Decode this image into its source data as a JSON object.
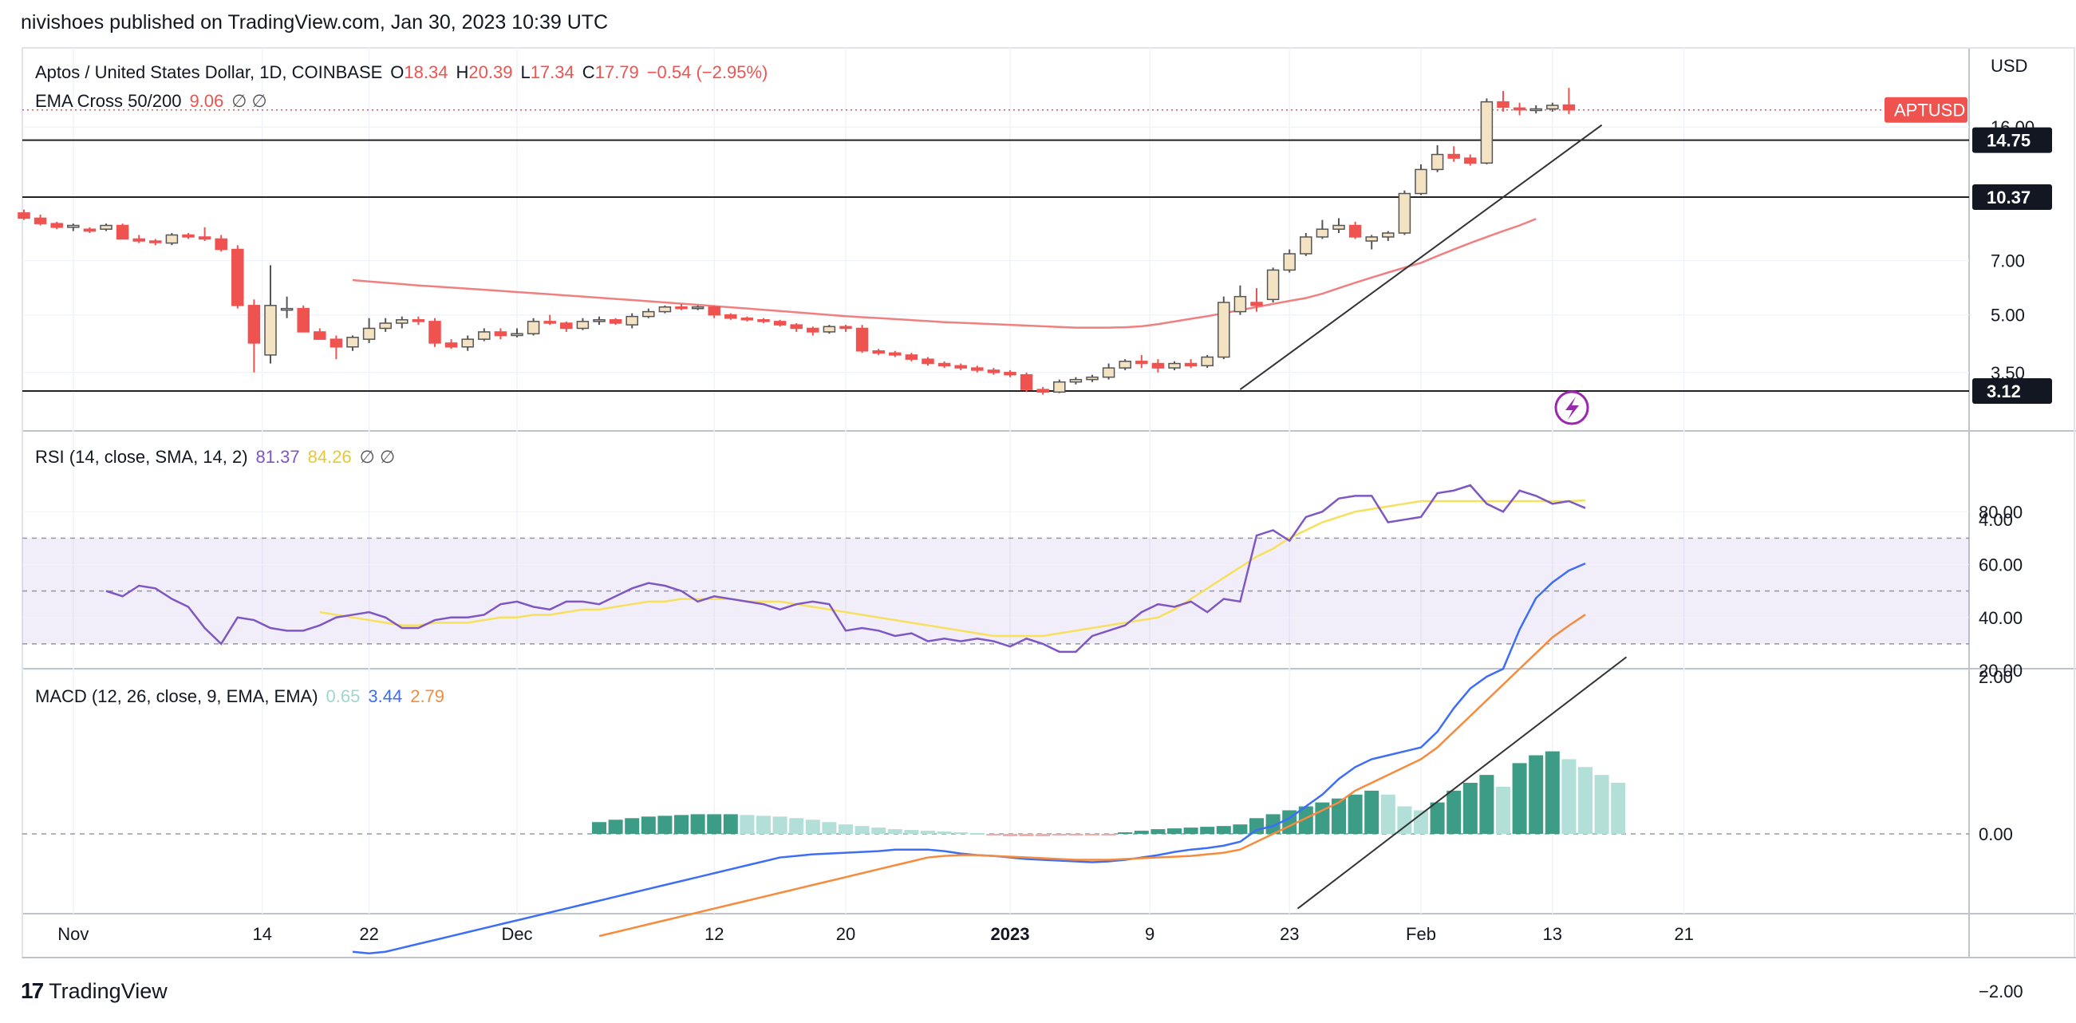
{
  "publisher": "nivishoes published on TradingView.com, Jan 30, 2023 10:39 UTC",
  "footer": {
    "brand": "TradingView",
    "logo": "17"
  },
  "colors": {
    "up": "#f3e3c3",
    "down": "#ef5350",
    "ema": "#f08080",
    "rsi": "#7e57c2",
    "rsi_ma": "#f6e05e",
    "macd": "#3d6ef5",
    "signal": "#f58b3d",
    "hist_strong": "#3c9c86",
    "hist_weak": "#b2dfd8"
  },
  "price_pane": {
    "title": "Aptos / United States Dollar, 1D, COINBASE",
    "o_label": "O",
    "o": "18.34",
    "h_label": "H",
    "h": "20.39",
    "l_label": "L",
    "l": "17.34",
    "c_label": "C",
    "c": "17.79",
    "change": "−0.54 (−2.95%)",
    "ema_label": "EMA Cross 50/200",
    "ema_value": "9.06",
    "ema_extra": "∅ ∅",
    "currency": "USD",
    "symbol_tag": "APTUSD",
    "levels": [
      "14.75",
      "10.37",
      "3.12"
    ],
    "ticks": [
      "16.00",
      "7.00",
      "5.00",
      "3.50"
    ],
    "icon": "lightning-icon"
  },
  "rsi_pane": {
    "title": "RSI (14, close, SMA, 14, 2)",
    "value": "81.37",
    "ma_value": "84.26",
    "extra": "∅ ∅",
    "ticks": [
      "80.00",
      "60.00",
      "40.00",
      "20.00"
    ]
  },
  "macd_pane": {
    "title": "MACD (12, 26, close, 9, EMA, EMA)",
    "hist": "0.65",
    "macd": "3.44",
    "signal": "2.79",
    "ticks": [
      "4.00",
      "2.00",
      "0.00",
      "−2.00"
    ]
  },
  "time_axis": [
    "Nov",
    "14",
    "22",
    "Dec",
    "12",
    "20",
    "2023",
    "9",
    "23",
    "Feb",
    "13",
    "21"
  ],
  "chart_data": {
    "type": "candlestick",
    "title": "Aptos / United States Dollar, 1D, COINBASE",
    "price_ticks": [
      16.0,
      7.0,
      5.0,
      3.5
    ],
    "horizontal_levels": [
      14.75,
      10.37,
      3.12
    ],
    "candles": [
      {
        "o": 9.4,
        "h": 9.6,
        "l": 9.0,
        "c": 9.1
      },
      {
        "o": 9.1,
        "h": 9.3,
        "l": 8.7,
        "c": 8.8
      },
      {
        "o": 8.8,
        "h": 8.9,
        "l": 8.5,
        "c": 8.6
      },
      {
        "o": 8.6,
        "h": 8.8,
        "l": 8.4,
        "c": 8.7
      },
      {
        "o": 8.5,
        "h": 8.6,
        "l": 8.3,
        "c": 8.4
      },
      {
        "o": 8.5,
        "h": 8.8,
        "l": 8.4,
        "c": 8.7
      },
      {
        "o": 8.7,
        "h": 8.8,
        "l": 8.0,
        "c": 8.0
      },
      {
        "o": 8.0,
        "h": 8.2,
        "l": 7.8,
        "c": 7.9
      },
      {
        "o": 7.9,
        "h": 8.0,
        "l": 7.7,
        "c": 7.85
      },
      {
        "o": 7.8,
        "h": 8.3,
        "l": 7.7,
        "c": 8.2
      },
      {
        "o": 8.2,
        "h": 8.3,
        "l": 8.0,
        "c": 8.1
      },
      {
        "o": 8.1,
        "h": 8.6,
        "l": 7.9,
        "c": 8.0
      },
      {
        "o": 8.0,
        "h": 8.2,
        "l": 7.4,
        "c": 7.5
      },
      {
        "o": 7.5,
        "h": 7.7,
        "l": 5.2,
        "c": 5.3
      },
      {
        "o": 5.3,
        "h": 5.5,
        "l": 3.5,
        "c": 4.2
      },
      {
        "o": 3.9,
        "h": 6.8,
        "l": 3.7,
        "c": 5.3
      },
      {
        "o": 5.2,
        "h": 5.6,
        "l": 4.9,
        "c": 5.2
      },
      {
        "o": 5.2,
        "h": 5.3,
        "l": 4.5,
        "c": 4.5
      },
      {
        "o": 4.5,
        "h": 4.6,
        "l": 4.3,
        "c": 4.3
      },
      {
        "o": 4.3,
        "h": 4.4,
        "l": 3.8,
        "c": 4.1
      },
      {
        "o": 4.1,
        "h": 4.4,
        "l": 4.0,
        "c": 4.35
      },
      {
        "o": 4.3,
        "h": 4.9,
        "l": 4.2,
        "c": 4.6
      },
      {
        "o": 4.6,
        "h": 4.9,
        "l": 4.5,
        "c": 4.75
      },
      {
        "o": 4.75,
        "h": 4.95,
        "l": 4.6,
        "c": 4.85
      },
      {
        "o": 4.85,
        "h": 4.95,
        "l": 4.7,
        "c": 4.8
      },
      {
        "o": 4.8,
        "h": 4.9,
        "l": 4.1,
        "c": 4.2
      },
      {
        "o": 4.2,
        "h": 4.3,
        "l": 4.05,
        "c": 4.1
      },
      {
        "o": 4.1,
        "h": 4.4,
        "l": 4.0,
        "c": 4.3
      },
      {
        "o": 4.3,
        "h": 4.6,
        "l": 4.25,
        "c": 4.5
      },
      {
        "o": 4.5,
        "h": 4.6,
        "l": 4.3,
        "c": 4.4
      },
      {
        "o": 4.4,
        "h": 4.6,
        "l": 4.35,
        "c": 4.45
      },
      {
        "o": 4.45,
        "h": 4.9,
        "l": 4.4,
        "c": 4.8
      },
      {
        "o": 4.8,
        "h": 5.0,
        "l": 4.7,
        "c": 4.75
      },
      {
        "o": 4.75,
        "h": 4.8,
        "l": 4.5,
        "c": 4.6
      },
      {
        "o": 4.6,
        "h": 4.9,
        "l": 4.55,
        "c": 4.8
      },
      {
        "o": 4.8,
        "h": 4.95,
        "l": 4.7,
        "c": 4.85
      },
      {
        "o": 4.85,
        "h": 4.9,
        "l": 4.7,
        "c": 4.75
      },
      {
        "o": 4.7,
        "h": 5.05,
        "l": 4.6,
        "c": 4.95
      },
      {
        "o": 4.95,
        "h": 5.2,
        "l": 4.9,
        "c": 5.1
      },
      {
        "o": 5.1,
        "h": 5.3,
        "l": 5.05,
        "c": 5.25
      },
      {
        "o": 5.25,
        "h": 5.35,
        "l": 5.15,
        "c": 5.2
      },
      {
        "o": 5.2,
        "h": 5.3,
        "l": 5.15,
        "c": 5.25
      },
      {
        "o": 5.25,
        "h": 5.3,
        "l": 4.9,
        "c": 5.0
      },
      {
        "o": 5.0,
        "h": 5.05,
        "l": 4.85,
        "c": 4.9
      },
      {
        "o": 4.9,
        "h": 4.95,
        "l": 4.8,
        "c": 4.85
      },
      {
        "o": 4.85,
        "h": 4.9,
        "l": 4.75,
        "c": 4.8
      },
      {
        "o": 4.8,
        "h": 4.85,
        "l": 4.65,
        "c": 4.7
      },
      {
        "o": 4.7,
        "h": 4.75,
        "l": 4.5,
        "c": 4.6
      },
      {
        "o": 4.6,
        "h": 4.65,
        "l": 4.4,
        "c": 4.5
      },
      {
        "o": 4.5,
        "h": 4.7,
        "l": 4.45,
        "c": 4.65
      },
      {
        "o": 4.65,
        "h": 4.7,
        "l": 4.5,
        "c": 4.6
      },
      {
        "o": 4.6,
        "h": 4.7,
        "l": 3.95,
        "c": 4.0
      },
      {
        "o": 4.0,
        "h": 4.05,
        "l": 3.9,
        "c": 3.95
      },
      {
        "o": 3.95,
        "h": 4.0,
        "l": 3.85,
        "c": 3.9
      },
      {
        "o": 3.9,
        "h": 3.95,
        "l": 3.75,
        "c": 3.8
      },
      {
        "o": 3.8,
        "h": 3.85,
        "l": 3.65,
        "c": 3.7
      },
      {
        "o": 3.7,
        "h": 3.75,
        "l": 3.6,
        "c": 3.65
      },
      {
        "o": 3.65,
        "h": 3.7,
        "l": 3.55,
        "c": 3.6
      },
      {
        "o": 3.6,
        "h": 3.65,
        "l": 3.5,
        "c": 3.55
      },
      {
        "o": 3.55,
        "h": 3.6,
        "l": 3.45,
        "c": 3.5
      },
      {
        "o": 3.5,
        "h": 3.55,
        "l": 3.4,
        "c": 3.45
      },
      {
        "o": 3.45,
        "h": 3.5,
        "l": 3.1,
        "c": 3.15
      },
      {
        "o": 3.15,
        "h": 3.2,
        "l": 3.05,
        "c": 3.1
      },
      {
        "o": 3.1,
        "h": 3.35,
        "l": 3.08,
        "c": 3.3
      },
      {
        "o": 3.3,
        "h": 3.4,
        "l": 3.25,
        "c": 3.35
      },
      {
        "o": 3.35,
        "h": 3.45,
        "l": 3.3,
        "c": 3.4
      },
      {
        "o": 3.4,
        "h": 3.7,
        "l": 3.35,
        "c": 3.6
      },
      {
        "o": 3.6,
        "h": 3.8,
        "l": 3.55,
        "c": 3.75
      },
      {
        "o": 3.75,
        "h": 3.9,
        "l": 3.6,
        "c": 3.7
      },
      {
        "o": 3.7,
        "h": 3.8,
        "l": 3.5,
        "c": 3.6
      },
      {
        "o": 3.6,
        "h": 3.75,
        "l": 3.55,
        "c": 3.7
      },
      {
        "o": 3.7,
        "h": 3.8,
        "l": 3.6,
        "c": 3.65
      },
      {
        "o": 3.65,
        "h": 3.9,
        "l": 3.6,
        "c": 3.85
      },
      {
        "o": 3.85,
        "h": 5.6,
        "l": 3.8,
        "c": 5.4
      },
      {
        "o": 5.1,
        "h": 6.0,
        "l": 5.0,
        "c": 5.6
      },
      {
        "o": 5.4,
        "h": 5.9,
        "l": 5.1,
        "c": 5.3
      },
      {
        "o": 5.5,
        "h": 6.7,
        "l": 5.4,
        "c": 6.6
      },
      {
        "o": 6.6,
        "h": 7.5,
        "l": 6.5,
        "c": 7.3
      },
      {
        "o": 7.3,
        "h": 8.3,
        "l": 7.2,
        "c": 8.1
      },
      {
        "o": 8.1,
        "h": 9.0,
        "l": 8.0,
        "c": 8.5
      },
      {
        "o": 8.5,
        "h": 9.1,
        "l": 8.3,
        "c": 8.7
      },
      {
        "o": 8.7,
        "h": 8.9,
        "l": 8.0,
        "c": 8.1
      },
      {
        "o": 7.9,
        "h": 8.2,
        "l": 7.5,
        "c": 8.1
      },
      {
        "o": 8.1,
        "h": 8.4,
        "l": 7.9,
        "c": 8.3
      },
      {
        "o": 8.3,
        "h": 10.8,
        "l": 8.2,
        "c": 10.6
      },
      {
        "o": 10.6,
        "h": 12.7,
        "l": 10.5,
        "c": 12.3
      },
      {
        "o": 12.3,
        "h": 14.3,
        "l": 12.1,
        "c": 13.5
      },
      {
        "o": 13.5,
        "h": 14.2,
        "l": 12.9,
        "c": 13.2
      },
      {
        "o": 13.2,
        "h": 13.5,
        "l": 12.6,
        "c": 12.8
      },
      {
        "o": 12.8,
        "h": 19.1,
        "l": 12.7,
        "c": 18.7
      },
      {
        "o": 18.7,
        "h": 20.0,
        "l": 17.6,
        "c": 18.1
      },
      {
        "o": 18.0,
        "h": 18.6,
        "l": 17.2,
        "c": 17.8
      },
      {
        "o": 17.8,
        "h": 18.3,
        "l": 17.4,
        "c": 17.9
      },
      {
        "o": 17.9,
        "h": 18.6,
        "l": 17.6,
        "c": 18.3
      },
      {
        "o": 18.34,
        "h": 20.39,
        "l": 17.34,
        "c": 17.79
      }
    ],
    "ema_start_index": 20,
    "ema": [
      6.2,
      6.15,
      6.1,
      6.05,
      6.0,
      5.96,
      5.92,
      5.88,
      5.84,
      5.8,
      5.76,
      5.72,
      5.68,
      5.64,
      5.6,
      5.56,
      5.52,
      5.48,
      5.44,
      5.4,
      5.36,
      5.32,
      5.28,
      5.24,
      5.2,
      5.16,
      5.12,
      5.08,
      5.04,
      5.0,
      4.96,
      4.93,
      4.9,
      4.87,
      4.84,
      4.81,
      4.78,
      4.76,
      4.74,
      4.72,
      4.7,
      4.68,
      4.66,
      4.64,
      4.62,
      4.62,
      4.62,
      4.63,
      4.66,
      4.72,
      4.8,
      4.88,
      4.96,
      5.05,
      5.15,
      5.25,
      5.35,
      5.45,
      5.55,
      5.7,
      5.9,
      6.1,
      6.3,
      6.5,
      6.7,
      6.9,
      7.2,
      7.5,
      7.8,
      8.1,
      8.4,
      8.7,
      9.06
    ],
    "rsi_ticks": [
      80,
      60,
      40,
      20
    ],
    "rsi_band": [
      30,
      70
    ],
    "rsi": [
      null,
      null,
      null,
      null,
      null,
      50,
      48,
      52,
      51,
      47,
      44,
      36,
      30,
      40,
      39,
      36,
      35,
      35,
      37,
      40,
      41,
      42,
      40,
      36,
      36,
      39,
      40,
      40,
      41,
      45,
      46,
      44,
      43,
      46,
      46,
      45,
      48,
      51,
      53,
      52,
      50,
      46,
      48,
      47,
      46,
      45,
      43,
      45,
      46,
      45,
      35,
      36,
      35,
      33,
      34,
      31,
      32,
      31,
      32,
      31,
      29,
      32,
      30,
      27,
      27,
      33,
      35,
      37,
      42,
      45,
      44,
      46,
      42,
      47,
      46,
      71,
      73,
      69,
      78,
      80,
      85,
      86,
      86,
      76,
      77,
      78,
      87,
      88,
      90,
      83,
      80,
      88,
      86,
      83,
      84,
      81.37
    ],
    "rsi_ma": [
      null,
      null,
      null,
      null,
      null,
      null,
      null,
      null,
      null,
      null,
      null,
      null,
      null,
      null,
      null,
      null,
      null,
      null,
      42,
      41,
      40,
      39,
      38,
      37,
      37,
      38,
      38,
      38,
      39,
      40,
      40,
      41,
      41,
      42,
      43,
      43,
      44,
      45,
      46,
      46,
      47,
      47,
      47,
      47,
      46,
      46,
      46,
      45,
      44,
      43,
      42,
      41,
      40,
      39,
      38,
      37,
      36,
      35,
      34,
      33,
      33,
      33,
      33,
      34,
      35,
      36,
      37,
      38,
      39,
      40,
      43,
      47,
      51,
      55,
      59,
      63,
      66,
      70,
      73,
      76,
      78,
      80,
      81,
      82,
      83,
      84,
      84,
      84,
      84,
      84,
      84,
      84,
      84,
      84,
      84,
      84.26
    ],
    "macd_ticks": [
      4.0,
      2.0,
      0.0,
      -2.0
    ],
    "macd": [
      null,
      null,
      null,
      null,
      null,
      null,
      null,
      null,
      null,
      null,
      null,
      null,
      null,
      null,
      null,
      null,
      null,
      null,
      null,
      null,
      -1.5,
      -1.52,
      -1.5,
      -1.45,
      -1.4,
      -1.35,
      -1.3,
      -1.25,
      -1.2,
      -1.15,
      -1.1,
      -1.05,
      -1.0,
      -0.95,
      -0.9,
      -0.85,
      -0.8,
      -0.75,
      -0.7,
      -0.65,
      -0.6,
      -0.55,
      -0.5,
      -0.45,
      -0.4,
      -0.35,
      -0.3,
      -0.28,
      -0.26,
      -0.25,
      -0.24,
      -0.23,
      -0.22,
      -0.2,
      -0.2,
      -0.2,
      -0.22,
      -0.25,
      -0.27,
      -0.28,
      -0.3,
      -0.32,
      -0.33,
      -0.34,
      -0.35,
      -0.36,
      -0.35,
      -0.33,
      -0.3,
      -0.27,
      -0.23,
      -0.2,
      -0.18,
      -0.15,
      -0.1,
      0.05,
      0.1,
      0.2,
      0.35,
      0.5,
      0.7,
      0.85,
      0.95,
      1.0,
      1.05,
      1.1,
      1.3,
      1.6,
      1.85,
      2.0,
      2.1,
      2.6,
      3.0,
      3.2,
      3.35,
      3.44
    ],
    "signal": [
      null,
      null,
      null,
      null,
      null,
      null,
      null,
      null,
      null,
      null,
      null,
      null,
      null,
      null,
      null,
      null,
      null,
      null,
      null,
      null,
      null,
      null,
      null,
      null,
      null,
      null,
      null,
      null,
      null,
      null,
      null,
      null,
      null,
      null,
      null,
      -1.3,
      -1.25,
      -1.2,
      -1.15,
      -1.1,
      -1.05,
      -1.0,
      -0.95,
      -0.9,
      -0.85,
      -0.8,
      -0.75,
      -0.7,
      -0.65,
      -0.6,
      -0.55,
      -0.5,
      -0.45,
      -0.4,
      -0.35,
      -0.3,
      -0.28,
      -0.27,
      -0.27,
      -0.28,
      -0.29,
      -0.3,
      -0.31,
      -0.32,
      -0.33,
      -0.33,
      -0.33,
      -0.32,
      -0.31,
      -0.3,
      -0.29,
      -0.28,
      -0.26,
      -0.24,
      -0.2,
      -0.1,
      0.0,
      0.1,
      0.2,
      0.3,
      0.4,
      0.55,
      0.65,
      0.75,
      0.85,
      0.95,
      1.1,
      1.3,
      1.5,
      1.7,
      1.9,
      2.1,
      2.3,
      2.5,
      2.65,
      2.79
    ],
    "hist": [
      null,
      null,
      null,
      null,
      null,
      null,
      null,
      null,
      null,
      null,
      null,
      null,
      null,
      null,
      null,
      null,
      null,
      null,
      null,
      null,
      null,
      null,
      null,
      null,
      null,
      null,
      null,
      null,
      null,
      null,
      null,
      null,
      null,
      null,
      null,
      0.15,
      0.18,
      0.2,
      0.22,
      0.23,
      0.24,
      0.25,
      0.25,
      0.25,
      0.24,
      0.23,
      0.22,
      0.2,
      0.18,
      0.15,
      0.12,
      0.1,
      0.08,
      0.06,
      0.05,
      0.04,
      0.03,
      0.02,
      0.01,
      -0.02,
      -0.03,
      -0.03,
      -0.03,
      -0.02,
      -0.02,
      -0.02,
      -0.01,
      0.02,
      0.04,
      0.06,
      0.07,
      0.08,
      0.09,
      0.1,
      0.12,
      0.2,
      0.25,
      0.3,
      0.35,
      0.4,
      0.45,
      0.5,
      0.55,
      0.5,
      0.35,
      0.3,
      0.4,
      0.55,
      0.65,
      0.75,
      0.6,
      0.9,
      1.0,
      1.05,
      0.95,
      0.85,
      0.75,
      0.65
    ]
  }
}
